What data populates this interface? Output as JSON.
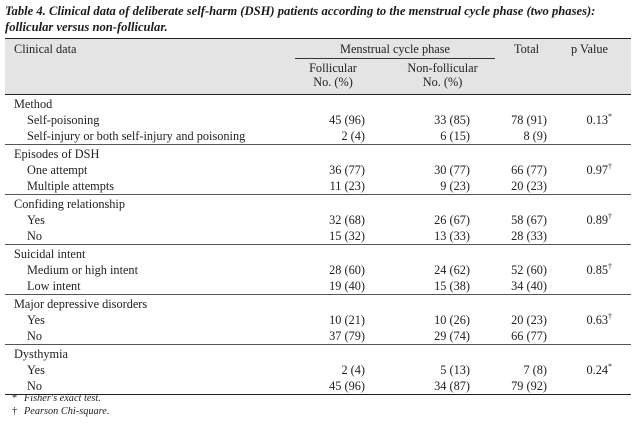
{
  "caption": "Table 4. Clinical data of deliberate self-harm (DSH) patients according to the menstrual cycle phase (two phases): follicular versus non-follicular.",
  "header": {
    "clinical_data": "Clinical data",
    "phase": "Menstrual cycle phase",
    "follicular": "Follicular",
    "nonfollicular": "Non-follicular",
    "unit": "No. (%)",
    "total": "Total",
    "p": "p Value"
  },
  "groups": [
    {
      "title": "Method",
      "rows": [
        {
          "label": "Self-poisoning",
          "fol": "45 (96)",
          "non": "33 (85)",
          "total": "78 (91)",
          "p": "0.13",
          "mark": "*"
        },
        {
          "label": "Self-injury or both self-injury and poisoning",
          "fol": "2 (4)",
          "non": "6 (15)",
          "total": "8 (9)",
          "p": "",
          "mark": ""
        }
      ]
    },
    {
      "title": "Episodes of DSH",
      "rows": [
        {
          "label": "One attempt",
          "fol": "36 (77)",
          "non": "30 (77)",
          "total": "66 (77)",
          "p": "0.97",
          "mark": "†"
        },
        {
          "label": "Multiple attempts",
          "fol": "11 (23)",
          "non": "9 (23)",
          "total": "20 (23)",
          "p": "",
          "mark": ""
        }
      ]
    },
    {
      "title": "Confiding relationship",
      "rows": [
        {
          "label": "Yes",
          "fol": "32 (68)",
          "non": "26 (67)",
          "total": "58 (67)",
          "p": "0.89",
          "mark": "†"
        },
        {
          "label": "No",
          "fol": "15 (32)",
          "non": "13 (33)",
          "total": "28 (33)",
          "p": "",
          "mark": ""
        }
      ]
    },
    {
      "title": "Suicidal intent",
      "rows": [
        {
          "label": "Medium or high intent",
          "fol": "28 (60)",
          "non": "24 (62)",
          "total": "52 (60)",
          "p": "0.85",
          "mark": "†"
        },
        {
          "label": "Low intent",
          "fol": "19 (40)",
          "non": "15 (38)",
          "total": "34 (40)",
          "p": "",
          "mark": ""
        }
      ]
    },
    {
      "title": "Major depressive disorders",
      "rows": [
        {
          "label": "Yes",
          "fol": "10 (21)",
          "non": "10 (26)",
          "total": "20 (23)",
          "p": "0.63",
          "mark": "†"
        },
        {
          "label": "No",
          "fol": "37 (79)",
          "non": "29 (74)",
          "total": "66 (77)",
          "p": "",
          "mark": ""
        }
      ]
    },
    {
      "title": "Dysthymia",
      "rows": [
        {
          "label": "Yes",
          "fol": "2 (4)",
          "non": "5 (13)",
          "total": "7 (8)",
          "p": "0.24",
          "mark": "*"
        },
        {
          "label": "No",
          "fol": "45 (96)",
          "non": "34 (87)",
          "total": "79 (92)",
          "p": "",
          "mark": ""
        }
      ]
    }
  ],
  "footnotes": [
    {
      "mark": "*",
      "text": "Fisher's exact test."
    },
    {
      "mark": "†",
      "text": "Pearson Chi-square."
    }
  ]
}
